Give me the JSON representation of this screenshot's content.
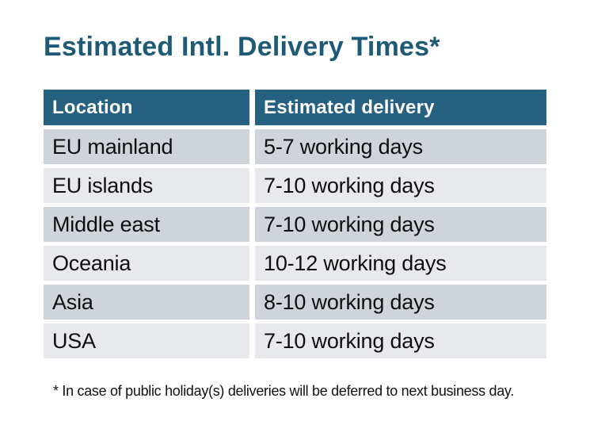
{
  "page": {
    "title": "Estimated Intl. Delivery Times*"
  },
  "table": {
    "headers": [
      "Location",
      "Estimated delivery"
    ],
    "rows": [
      [
        "EU mainland",
        "5-7 working days"
      ],
      [
        "EU islands",
        "7-10 working days"
      ],
      [
        "Middle east",
        "7-10 working days"
      ],
      [
        "Oceania",
        "10-12 working days"
      ],
      [
        "Asia",
        "8-10 working days"
      ],
      [
        "USA",
        "7-10 working days"
      ]
    ]
  },
  "footnote": "* In case of public holiday(s) deliveries will be deferred to next business day.",
  "colors": {
    "header_bg": "#266181",
    "title_text": "#1e5a76",
    "row_dark": "#cfd3da",
    "row_light": "#e7e9ec",
    "body_text": "#0e0e0e"
  }
}
